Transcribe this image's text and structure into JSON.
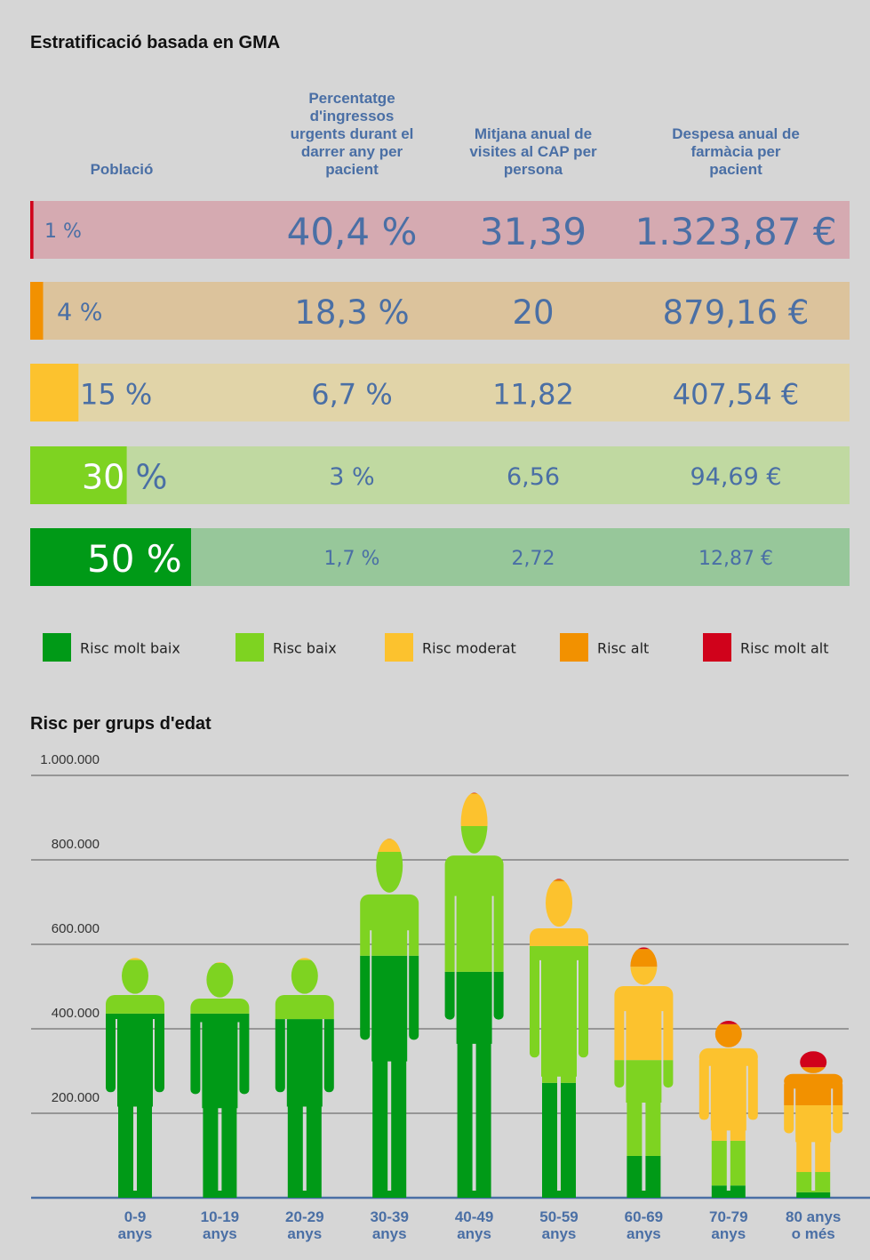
{
  "table": {
    "title": "Estratificació basada en GMA",
    "headers": [
      "Població",
      "Percentatge\nd'ingressos\nurgents durant el\ndarrer any per\npacient",
      "Mitjana anual de\nvisites al CAP per\npersona",
      "Despesa anual de\nfarmàcia per\npacient"
    ],
    "rows": [
      {
        "population": {
          "value": 1,
          "label": "1 %"
        },
        "admissions": "40,4 %",
        "visits": "31,39",
        "spend": "1.323,87 €",
        "color": "#d0021b",
        "background": "#d5aab1"
      },
      {
        "population": {
          "value": 4,
          "label": "4 %"
        },
        "admissions": "18,3 %",
        "visits": "20",
        "spend": "879,16 €",
        "color": "#f29100",
        "background": "#dcc39c"
      },
      {
        "population": {
          "value": 15,
          "label": "15 %"
        },
        "admissions": "6,7 %",
        "visits": "11,82",
        "spend": "407,54 €",
        "color": "#fcc22e",
        "background": "#e1d4a8"
      },
      {
        "population": {
          "value": 30,
          "label": "30 %"
        },
        "admissions": "3 %",
        "visits": "6,56",
        "spend": "94,69 €",
        "color": "#7ed321",
        "background": "#c0d9a1"
      },
      {
        "population": {
          "value": 50,
          "label": "50 %"
        },
        "admissions": "1,7 %",
        "visits": "2,72",
        "spend": "12,87 €",
        "color": "#009a17",
        "background": "#97c79a"
      }
    ]
  },
  "chart_data": {
    "type": "stacked_person",
    "title": "Risc per grups d'edat",
    "categories": [
      "0-9\nanys",
      "10-19\nanys",
      "20-29\nanys",
      "30-39\nanys",
      "40-49\nanys",
      "50-59\nanys",
      "60-69\nanys",
      "70-79\nanys",
      "80 anys\no més"
    ],
    "series": [
      {
        "name": "Risc molt baix",
        "color": "#009a17",
        "values": [
          436000,
          436000,
          423000,
          573000,
          535000,
          272000,
          99000,
          29000,
          13000
        ]
      },
      {
        "name": "Risc baix",
        "color": "#7ed321",
        "values": [
          127000,
          120000,
          140000,
          246000,
          345000,
          324000,
          227000,
          106000,
          48000
        ]
      },
      {
        "name": "Risc moderat",
        "color": "#fcc22e",
        "values": [
          5000,
          2000,
          5000,
          29000,
          76000,
          153000,
          221000,
          221000,
          158000
        ]
      },
      {
        "name": "Risc alt",
        "color": "#f29100",
        "values": [
          0,
          0,
          0,
          2000,
          2000,
          4000,
          42000,
          55000,
          90000
        ]
      },
      {
        "name": "Risc molt alt",
        "color": "#d0021b",
        "values": [
          0,
          0,
          0,
          0,
          1000,
          2000,
          4000,
          8000,
          38000
        ]
      }
    ],
    "ylim": [
      0,
      1000000
    ],
    "yticks": [
      {
        "value": 200000,
        "label": "200.000"
      },
      {
        "value": 400000,
        "label": "400.000"
      },
      {
        "value": 600000,
        "label": "600.000"
      },
      {
        "value": 800000,
        "label": "800.000"
      },
      {
        "value": 1000000,
        "label": "1.000.000"
      }
    ],
    "grid": true
  }
}
